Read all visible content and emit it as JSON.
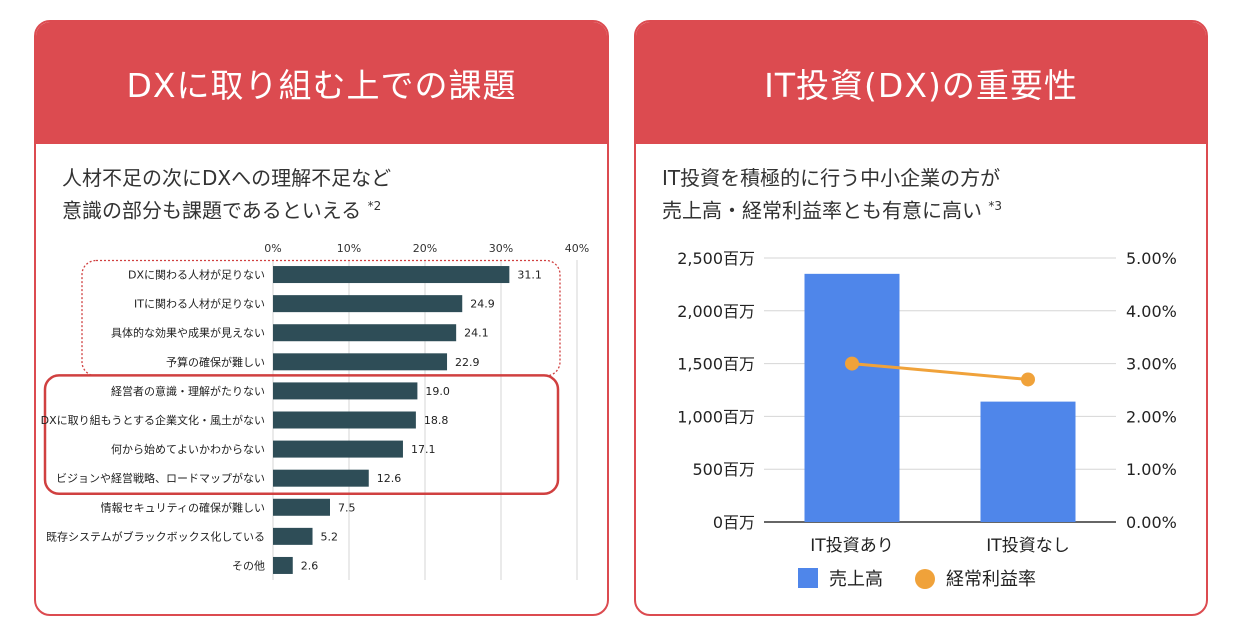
{
  "left_card": {
    "title": "DXに取り組む上での課題",
    "subtitle_line1": "人材不足の次にDXへの理解不足など",
    "subtitle_line2": "意識の部分も課題であるといえる",
    "subtitle_note": "*2"
  },
  "right_card": {
    "title": "IT投資(DX)の重要性",
    "subtitle_line1": "IT投資を積極的に行う中小企業の方が",
    "subtitle_line2": "売上高・経常利益率とも有意に高い",
    "subtitle_note": "*3"
  },
  "colors": {
    "header": "#dc4b50",
    "bar_dark": "#2e4d57",
    "bar_blue": "#4f86ea",
    "line_orange": "#f0a23a",
    "highlight_red": "#d04040"
  },
  "chart_data": [
    {
      "type": "bar",
      "orientation": "horizontal",
      "categories": [
        "DXに関わる人材が足りない",
        "ITに関わる人材が足りない",
        "具体的な効果や成果が見えない",
        "予算の確保が難しい",
        "経営者の意識・理解がたりない",
        "DXに取り組もうとする企業文化・風土がない",
        "何から始めてよいかわからない",
        "ビジョンや経営戦略、ロードマップがない",
        "情報セキュリティの確保が難しい",
        "既存システムがブラックボックス化している",
        "その他"
      ],
      "values": [
        31.1,
        24.9,
        24.1,
        22.9,
        19.0,
        18.8,
        17.1,
        12.6,
        7.5,
        5.2,
        2.6
      ],
      "value_labels": [
        "31.1",
        "24.9",
        "24.1",
        "22.9",
        "19.0",
        "18.8",
        "17.1",
        "12.6",
        "7.5",
        "5.2",
        "2.6"
      ],
      "x_ticks": [
        "0%",
        "10%",
        "20%",
        "30%",
        "40%"
      ],
      "xlim": [
        0,
        40
      ],
      "highlight_dotted_rows": [
        0,
        3
      ],
      "highlight_solid_rows": [
        4,
        7
      ]
    },
    {
      "type": "bar",
      "categories": [
        "IT投資あり",
        "IT投資なし"
      ],
      "series": [
        {
          "name": "売上高",
          "values": [
            2350,
            1140
          ],
          "unit": "百万"
        },
        {
          "name": "経常利益率",
          "type": "line",
          "values": [
            3.0,
            2.7
          ],
          "unit": "%"
        }
      ],
      "y_left_ticks": [
        "0百万",
        "500百万",
        "1,000百万",
        "1,500百万",
        "2,000百万",
        "2,500百万"
      ],
      "y_right_ticks": [
        "0.00%",
        "1.00%",
        "2.00%",
        "3.00%",
        "4.00%",
        "5.00%"
      ],
      "ylim_left": [
        0,
        2500
      ],
      "ylim_right": [
        0,
        5
      ],
      "legend": [
        "売上高",
        "経常利益率"
      ],
      "legend_position": "bottom"
    }
  ]
}
